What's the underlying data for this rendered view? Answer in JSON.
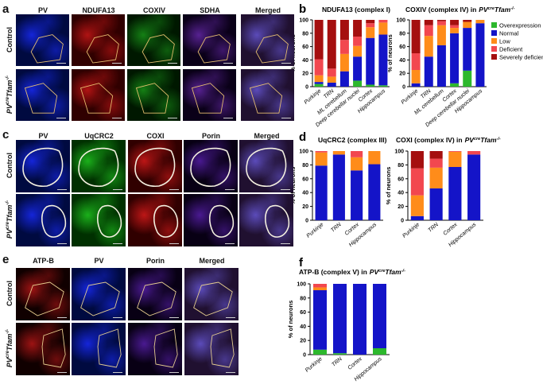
{
  "panels": {
    "a": {
      "letter": "a",
      "columns": [
        "PV",
        "NDUFA13",
        "COXIV",
        "SDHA",
        "Merged"
      ],
      "rows": [
        "Control",
        "PVcreTfam-/-"
      ]
    },
    "c": {
      "letter": "c",
      "columns": [
        "PV",
        "UqCRC2",
        "COXI",
        "Porin",
        "Merged"
      ],
      "rows": [
        "Control",
        "PVcreTfam-/-"
      ]
    },
    "e": {
      "letter": "e",
      "columns": [
        "ATP-B",
        "PV",
        "Porin",
        "Merged"
      ],
      "rows": [
        "Control",
        "PVcreTfam-/-"
      ]
    },
    "b": {
      "letter": "b"
    },
    "d": {
      "letter": "d"
    },
    "f": {
      "letter": "f"
    }
  },
  "genotype": {
    "main": "PV",
    "sup1": "cre",
    "mid": "Tfam",
    "sup2": "-/-"
  },
  "legend": [
    {
      "label": "Overexpression",
      "color": "#2db82d"
    },
    {
      "label": "Normal",
      "color": "#1414c8"
    },
    {
      "label": "Low",
      "color": "#ff8c1a"
    },
    {
      "label": "Deficient",
      "color": "#f2474f"
    },
    {
      "label": "Severely deficient",
      "color": "#a50f0f"
    }
  ],
  "chart_data": [
    {
      "id": "b1",
      "type": "bar",
      "stacked": true,
      "title": "NDUFA13 (complex I)",
      "ylabel": "% of neurons",
      "ylim": [
        0,
        100
      ],
      "yticks": [
        0,
        20,
        40,
        60,
        80,
        100
      ],
      "categories": [
        "Purkinje",
        "TRN",
        "ML cerebellum",
        "Deep cerebellar nuclei",
        "Cortex",
        "Hippocampus"
      ],
      "series": [
        {
          "name": "Overexpression",
          "values": [
            4,
            0,
            0,
            9,
            3,
            2
          ]
        },
        {
          "name": "Normal",
          "values": [
            3,
            6,
            23,
            36,
            70,
            76
          ]
        },
        {
          "name": "Low",
          "values": [
            10,
            9,
            26,
            16,
            16,
            18
          ]
        },
        {
          "name": "Deficient",
          "values": [
            24,
            12,
            21,
            14,
            6,
            4
          ]
        },
        {
          "name": "Severely deficient",
          "values": [
            59,
            73,
            30,
            25,
            5,
            0
          ]
        }
      ]
    },
    {
      "id": "b2",
      "type": "bar",
      "stacked": true,
      "title": "COXIV (complex IV) in",
      "title_genotype": true,
      "ylabel": "% of neurons",
      "ylim": [
        0,
        100
      ],
      "yticks": [
        0,
        20,
        40,
        60,
        80,
        100
      ],
      "categories": [
        "Purkinje",
        "TRN",
        "ML cerebellum",
        "Cortex",
        "Deep cerebellar nuclei",
        "Hippocampus"
      ],
      "series": [
        {
          "name": "Overexpression",
          "values": [
            0,
            0,
            0,
            5,
            24,
            0
          ]
        },
        {
          "name": "Normal",
          "values": [
            5,
            45,
            62,
            75,
            64,
            95
          ]
        },
        {
          "name": "Low",
          "values": [
            20,
            31,
            30,
            8,
            9,
            5
          ]
        },
        {
          "name": "Deficient",
          "values": [
            25,
            16,
            6,
            4,
            0,
            0
          ]
        },
        {
          "name": "Severely deficient",
          "values": [
            50,
            8,
            2,
            8,
            3,
            0
          ]
        }
      ]
    },
    {
      "id": "d1",
      "type": "bar",
      "stacked": true,
      "title": "UqCRC2 (complex III)",
      "ylabel": "% of neurons",
      "ylim": [
        0,
        100
      ],
      "yticks": [
        0,
        20,
        40,
        60,
        80,
        100
      ],
      "categories": [
        "Purkinje",
        "TRN",
        "Cortex",
        "Hippocampus"
      ],
      "series": [
        {
          "name": "Overexpression",
          "values": [
            0,
            0,
            0,
            0
          ]
        },
        {
          "name": "Normal",
          "values": [
            79,
            95,
            72,
            81
          ]
        },
        {
          "name": "Low",
          "values": [
            19,
            5,
            19,
            19
          ]
        },
        {
          "name": "Deficient",
          "values": [
            2,
            0,
            9,
            0
          ]
        },
        {
          "name": "Severely deficient",
          "values": [
            0,
            0,
            0,
            0
          ]
        }
      ]
    },
    {
      "id": "d2",
      "type": "bar",
      "stacked": true,
      "title": "COXI (complex IV) in",
      "title_genotype": true,
      "ylabel": "% of neurons",
      "ylim": [
        0,
        100
      ],
      "yticks": [
        0,
        20,
        40,
        60,
        80,
        100
      ],
      "categories": [
        "Purkinje",
        "TRN",
        "Cortex",
        "Hippocampus"
      ],
      "series": [
        {
          "name": "Overexpression",
          "values": [
            0,
            0,
            0,
            0
          ]
        },
        {
          "name": "Normal",
          "values": [
            6,
            46,
            77,
            95
          ]
        },
        {
          "name": "Low",
          "values": [
            30,
            30,
            22,
            0
          ]
        },
        {
          "name": "Deficient",
          "values": [
            39,
            13,
            1,
            5
          ]
        },
        {
          "name": "Severely deficient",
          "values": [
            25,
            11,
            0,
            0
          ]
        }
      ]
    },
    {
      "id": "f1",
      "type": "bar",
      "stacked": true,
      "title": "ATP-B (complex V) in",
      "title_genotype": true,
      "ylabel": "% of neurons",
      "ylim": [
        0,
        100
      ],
      "yticks": [
        0,
        20,
        40,
        60,
        80,
        100
      ],
      "categories": [
        "Purkinje",
        "TRN",
        "Cortex",
        "Hippocampus"
      ],
      "series": [
        {
          "name": "Overexpression",
          "values": [
            7,
            2,
            0,
            9
          ]
        },
        {
          "name": "Normal",
          "values": [
            84,
            98,
            100,
            91
          ]
        },
        {
          "name": "Low",
          "values": [
            4,
            0,
            0,
            0
          ]
        },
        {
          "name": "Deficient",
          "values": [
            5,
            0,
            0,
            0
          ]
        },
        {
          "name": "Severely deficient",
          "values": [
            0,
            0,
            0,
            0
          ]
        }
      ]
    }
  ]
}
